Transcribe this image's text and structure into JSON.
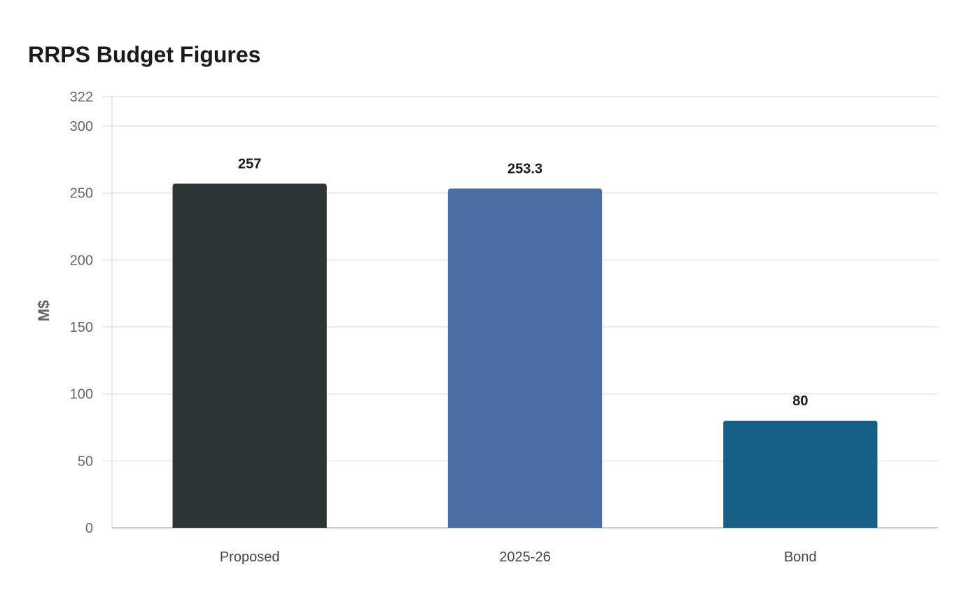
{
  "chart_data": {
    "type": "bar",
    "title": "RRPS Budget Figures",
    "xlabel": "",
    "ylabel": "M$",
    "categories": [
      "Proposed",
      "2025-26",
      "Bond"
    ],
    "values": [
      257,
      253.3,
      80
    ],
    "value_labels": [
      "257",
      "253.3",
      "80"
    ],
    "colors": [
      "#2d3436",
      "#4a6fa5",
      "#166088"
    ],
    "ylim": [
      0,
      322
    ],
    "yticks": [
      0,
      50,
      100,
      150,
      200,
      250,
      300,
      322
    ],
    "grid": true,
    "legend": "none"
  }
}
